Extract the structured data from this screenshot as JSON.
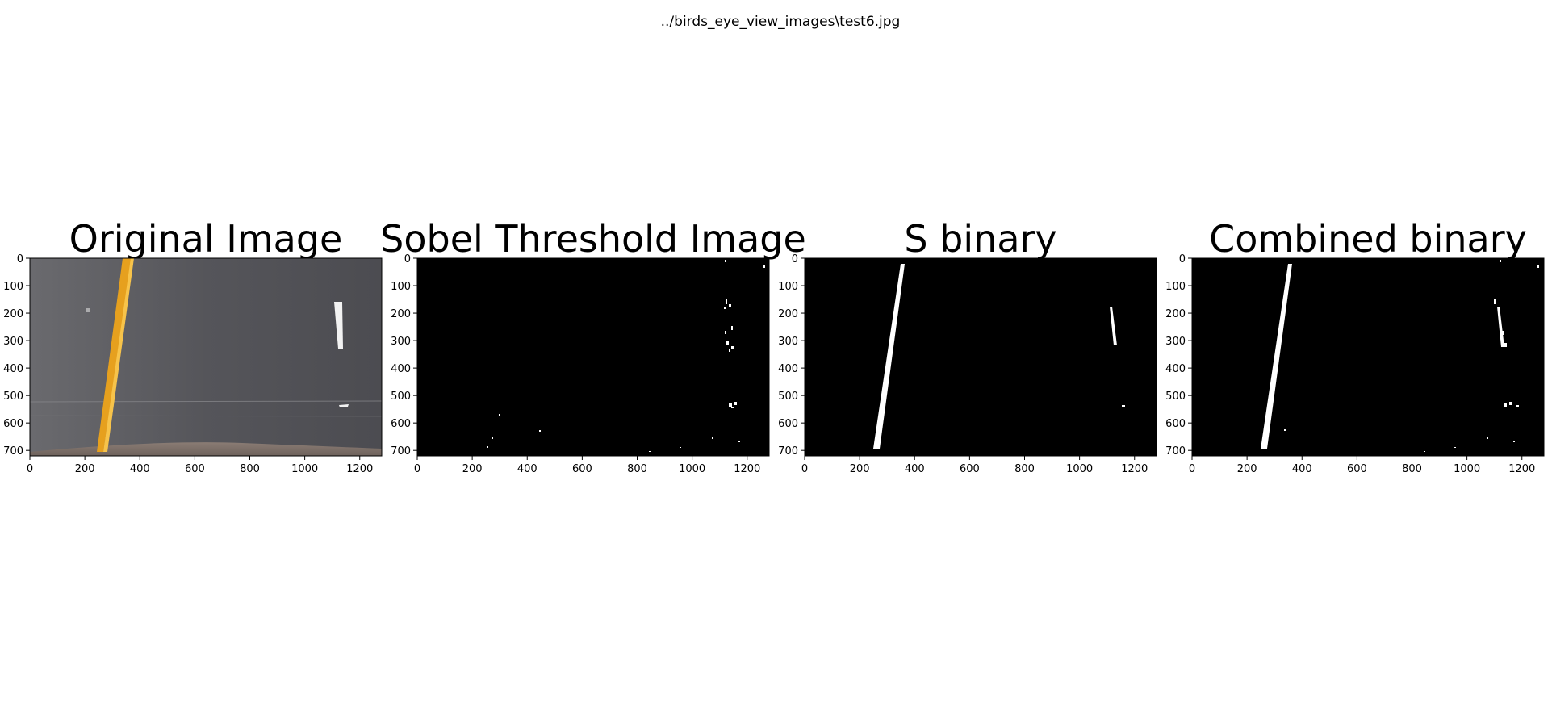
{
  "figure": {
    "suptitle": "../birds_eye_view_images\\test6.jpg"
  },
  "panels": [
    {
      "title": "Original Image",
      "kind": "photo"
    },
    {
      "title": "Sobel Threshold Image",
      "kind": "binary-sobel"
    },
    {
      "title": "S binary",
      "kind": "binary-s"
    },
    {
      "title": "Combined binary",
      "kind": "binary-combined"
    }
  ],
  "axes": {
    "x_ticks": [
      "0",
      "200",
      "400",
      "600",
      "800",
      "1000",
      "1200"
    ],
    "x_tick_values": [
      0,
      200,
      400,
      600,
      800,
      1000,
      1200
    ],
    "y_ticks": [
      "0",
      "100",
      "200",
      "300",
      "400",
      "500",
      "600",
      "700"
    ],
    "y_tick_values": [
      0,
      100,
      200,
      300,
      400,
      500,
      600,
      700
    ],
    "x_range": [
      0,
      1280
    ],
    "y_range": [
      720,
      0
    ]
  },
  "colors": {
    "road": "#56565b",
    "lane_yellow": "#f0a820",
    "lane_white": "#ffffff",
    "binary_bg": "#000000"
  }
}
